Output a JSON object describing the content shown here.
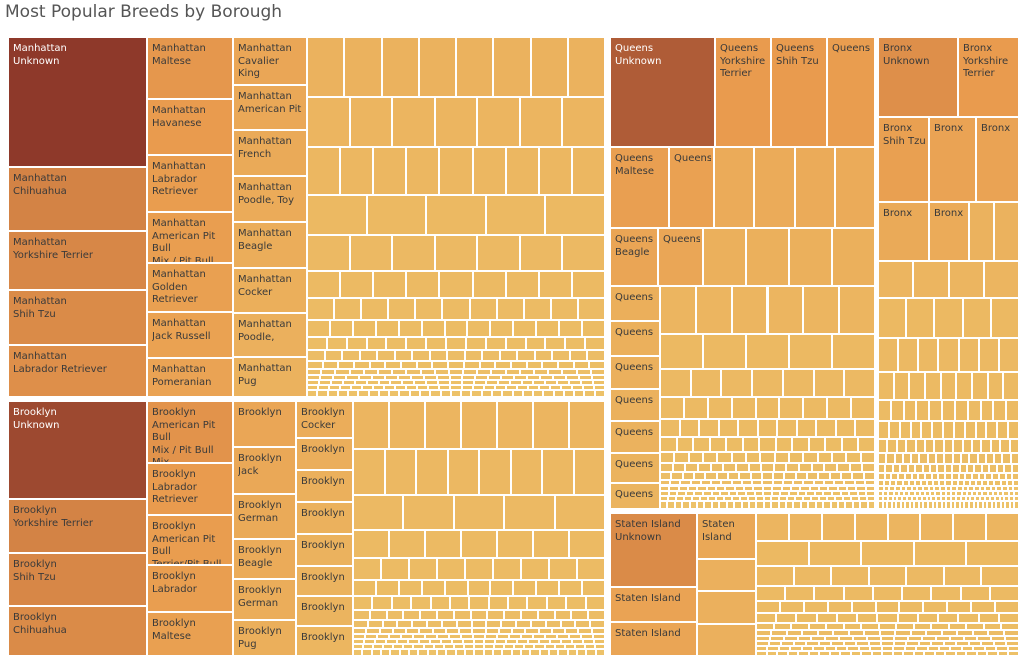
{
  "title": "Most Popular Breeds by Borough",
  "chart_data": {
    "type": "treemap",
    "title": "Most Popular Breeds by Borough",
    "colors": {
      "light": "#EDC46A",
      "mid": "#E99B4E",
      "dark": "#8E392A"
    },
    "boroughs": [
      {
        "name": "Manhattan",
        "labeled_tiles": [
          "Manhattan\nUnknown",
          "Manhattan\nChihuahua",
          "Manhattan\nYorkshire Terrier",
          "Manhattan\nShih Tzu",
          "Manhattan\nLabrador Retriever",
          "Manhattan\nMaltese",
          "Manhattan\nHavanese",
          "Manhattan\nLabrador\nRetriever",
          "Manhattan\nAmerican Pit Bull\nMix / Pit Bull Mix",
          "Manhattan\nGolden Retriever",
          "Manhattan\nJack Russell",
          "Manhattan\nPomeranian",
          "Manhattan\nCavalier King",
          "Manhattan\nAmerican Pit",
          "Manhattan\nFrench",
          "Manhattan\nPoodle, Toy",
          "Manhattan\nBeagle",
          "Manhattan\nCocker",
          "Manhattan\nPoodle,",
          "Manhattan\nPug"
        ]
      },
      {
        "name": "Brooklyn",
        "labeled_tiles": [
          "Brooklyn\nUnknown",
          "Brooklyn\nYorkshire Terrier",
          "Brooklyn\nShih Tzu",
          "Brooklyn\nChihuahua",
          "Brooklyn\nAmerican Pit Bull\nMix / Pit Bull Mix",
          "Brooklyn\nLabrador\nRetriever",
          "Brooklyn\nAmerican Pit Bull\nTerrier/Pit Bull",
          "Brooklyn\nLabrador",
          "Brooklyn\nMaltese",
          "Brooklyn",
          "Brooklyn\nJack",
          "Brooklyn\nGerman",
          "Brooklyn\nBeagle",
          "Brooklyn\nGerman",
          "Brooklyn\nPug",
          "Brooklyn\nCocker",
          "Brooklyn",
          "Brooklyn",
          "Brooklyn",
          "Brooklyn",
          "Brooklyn",
          "Brooklyn",
          "Brooklyn"
        ]
      },
      {
        "name": "Queens",
        "labeled_tiles": [
          "Queens\nUnknown",
          "Queens\nYorkshire\nTerrier",
          "Queens\nShih Tzu",
          "Queens",
          "Queens\nMaltese",
          "Queens",
          "Queens\nBeagle",
          "Queens",
          "Queens",
          "Queens",
          "Queens",
          "Queens",
          "Queens",
          "Queens",
          "Queens"
        ]
      },
      {
        "name": "Bronx",
        "labeled_tiles": [
          "Bronx\nUnknown",
          "Bronx\nYorkshire\nTerrier",
          "Bronx\nShih Tzu",
          "Bronx",
          "Bronx",
          "Bronx",
          "Bronx"
        ]
      },
      {
        "name": "Staten Island",
        "labeled_tiles": [
          "Staten Island\nUnknown",
          "Staten\nIsland",
          "Staten Island",
          "Staten Island"
        ]
      }
    ]
  }
}
